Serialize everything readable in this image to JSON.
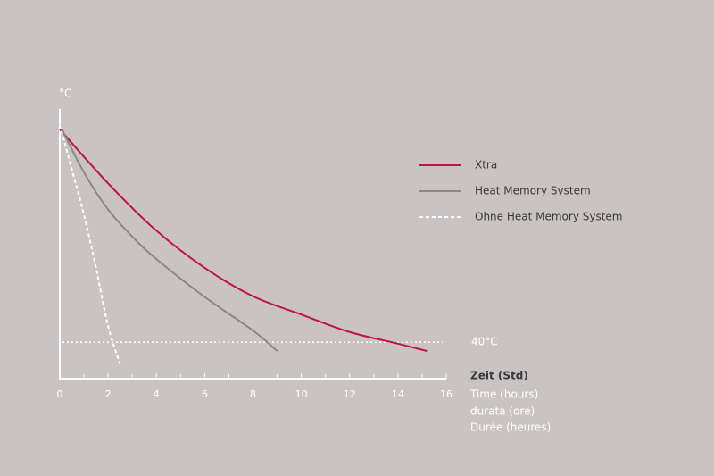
{
  "chart_data": {
    "type": "line",
    "y_label": "°C",
    "x_label": "Zeit (Std)",
    "x_label_translations": [
      "Time (hours)",
      "durata (ore)",
      "Durée (heures)"
    ],
    "xlim": [
      0,
      16
    ],
    "xticks": [
      0,
      2,
      4,
      6,
      8,
      10,
      12,
      14,
      16
    ],
    "x_minor_ticks": [
      1,
      3,
      5,
      7,
      9,
      11,
      13,
      15
    ],
    "ylim": [
      35,
      72
    ],
    "reference_line": {
      "value": 40,
      "label": "40°C",
      "color": "#ffffff"
    },
    "legend": "right",
    "series": [
      {
        "name": "Xtra",
        "color": "#c2143e",
        "dash": false,
        "x": [
          0,
          2,
          4,
          6,
          8,
          10,
          12,
          14,
          15.2
        ],
        "values": [
          69.2,
          61.8,
          55.3,
          50.2,
          46.3,
          43.8,
          41.4,
          39.8,
          38.8
        ]
      },
      {
        "name": "Heat Memory System",
        "color": "#8c8686",
        "dash": false,
        "x": [
          0,
          1,
          2,
          3,
          4,
          6,
          8,
          9
        ],
        "values": [
          69.8,
          63.3,
          58.2,
          54.5,
          51.4,
          46.2,
          41.6,
          38.8
        ]
      },
      {
        "name": "Ohne Heat Memory System",
        "color": "#ffffff",
        "dash": true,
        "x": [
          0,
          0.5,
          1,
          1.5,
          2,
          2.5
        ],
        "values": [
          69.8,
          63.7,
          57.5,
          50.2,
          42.2,
          37
        ]
      }
    ]
  }
}
